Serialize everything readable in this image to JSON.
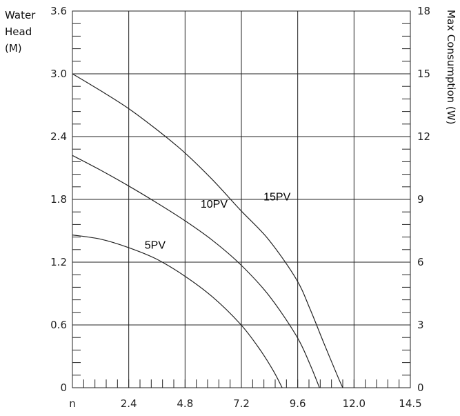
{
  "chart_data": {
    "type": "line",
    "title": "",
    "xlabel": "",
    "ylabel_left": [
      "Water",
      "Head",
      "(M)"
    ],
    "ylabel_right": "Max Consumption (W)",
    "xlim": [
      0,
      14.5
    ],
    "ylim": [
      0,
      3.6
    ],
    "ylim_right": [
      0,
      18
    ],
    "x_tick_labels": [
      "n",
      "2.4",
      "4.8",
      "7.2",
      "9.6",
      "12.0",
      "14.5"
    ],
    "y_ticks": [
      "0",
      "0.6",
      "1.2",
      "1.8",
      "2.4",
      "3.0",
      "3.6"
    ],
    "y_right_ticks": [
      "0",
      "3",
      "6",
      "9",
      "12",
      "15",
      "18"
    ],
    "grid": true,
    "series": [
      {
        "name": "5PV",
        "x": [
          0,
          1.2,
          2.4,
          3.6,
          4.8,
          6.0,
          7.2,
          8.0,
          8.6,
          9.0
        ],
        "y": [
          1.46,
          1.42,
          1.34,
          1.23,
          1.07,
          0.87,
          0.61,
          0.38,
          0.17,
          0.0
        ]
      },
      {
        "name": "10PV",
        "x": [
          0,
          1.2,
          2.4,
          3.6,
          4.8,
          6.0,
          7.2,
          8.4,
          9.6,
          10.2,
          10.6
        ],
        "y": [
          2.22,
          2.08,
          1.93,
          1.77,
          1.6,
          1.41,
          1.18,
          0.89,
          0.5,
          0.22,
          0.0
        ]
      },
      {
        "name": "15PV",
        "x": [
          0,
          1.2,
          2.4,
          3.6,
          4.8,
          6.0,
          7.2,
          8.4,
          9.6,
          10.2,
          10.8,
          11.4,
          11.6
        ],
        "y": [
          3.0,
          2.84,
          2.67,
          2.47,
          2.25,
          1.99,
          1.7,
          1.42,
          1.04,
          0.75,
          0.42,
          0.1,
          0.0
        ]
      }
    ],
    "labels": [
      {
        "text": "5PV",
        "x": 3.1,
        "y": 1.33
      },
      {
        "text": "10PV",
        "x": 5.5,
        "y": 1.72
      },
      {
        "text": "15PV",
        "x": 8.2,
        "y": 1.79
      }
    ]
  }
}
